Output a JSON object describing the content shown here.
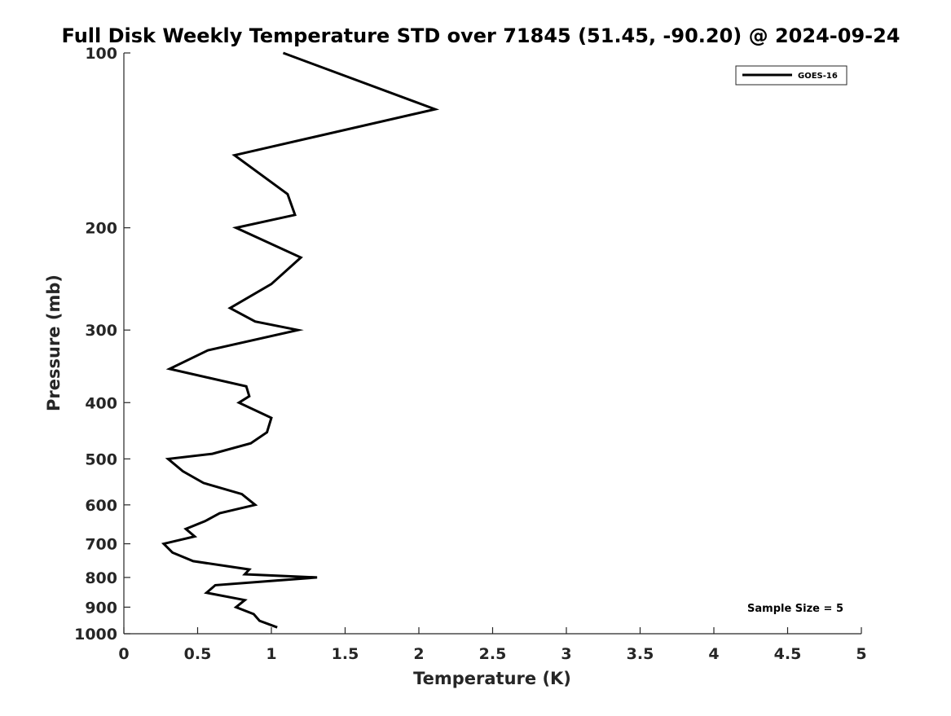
{
  "chart_data": {
    "type": "line",
    "title": "Full Disk Weekly Temperature STD over 71845 (51.45, -90.20) @ 2024-09-24",
    "xlabel": "Temperature (K)",
    "ylabel": "Pressure (mb)",
    "xlim": [
      0,
      5
    ],
    "ylim": [
      100,
      1000
    ],
    "y_scale": "log",
    "y_reversed": true,
    "grid": false,
    "legend_position": "top-right",
    "x_ticks": [
      "0",
      "0.5",
      "1",
      "1.5",
      "2",
      "2.5",
      "3",
      "3.5",
      "4",
      "4.5",
      "5"
    ],
    "y_ticks": [
      "100",
      "200",
      "300",
      "400",
      "500",
      "600",
      "700",
      "800",
      "900",
      "1000"
    ],
    "series": [
      {
        "name": "GOES-16",
        "color": "#000000",
        "x": [
          1.08,
          2.11,
          0.75,
          1.11,
          1.16,
          0.76,
          1.2,
          1.0,
          0.72,
          0.89,
          1.18,
          0.57,
          0.31,
          0.83,
          0.85,
          0.78,
          1.0,
          0.97,
          0.86,
          0.6,
          0.3,
          0.4,
          0.54,
          0.8,
          0.89,
          0.65,
          0.55,
          0.42,
          0.48,
          0.27,
          0.33,
          0.47,
          0.85,
          0.82,
          1.31,
          0.62,
          0.56,
          0.82,
          0.76,
          0.88,
          0.92,
          1.04
        ],
        "y": [
          100,
          125,
          150,
          175,
          190,
          200,
          225,
          250,
          275,
          290,
          300,
          325,
          350,
          375,
          390,
          400,
          425,
          450,
          470,
          490,
          500,
          525,
          550,
          575,
          600,
          620,
          640,
          660,
          680,
          700,
          725,
          750,
          775,
          790,
          800,
          825,
          850,
          875,
          900,
          925,
          950,
          975
        ]
      }
    ],
    "annotations": [
      {
        "text": "Sample Size = 5"
      }
    ]
  }
}
